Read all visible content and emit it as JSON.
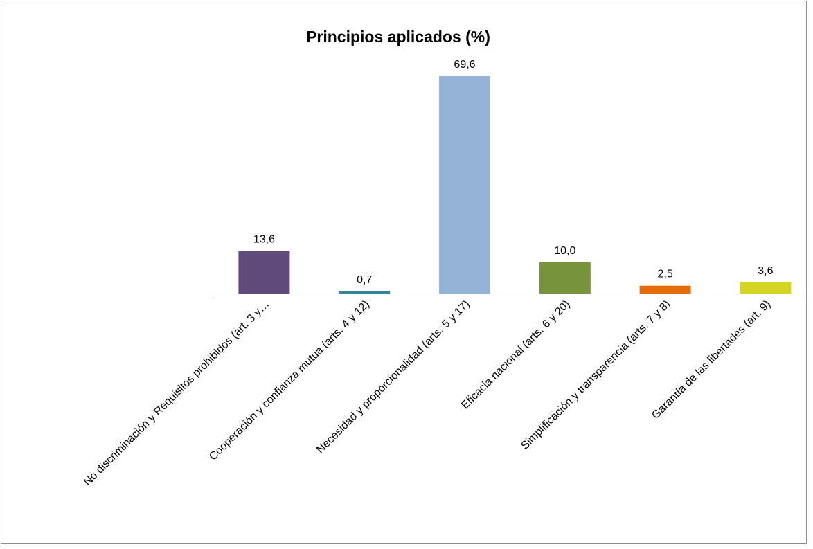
{
  "chart_data": {
    "type": "bar",
    "title": "Principios aplicados (%)",
    "categories": [
      "No discriminación y Requisitos prohibidos (art. 3 y…",
      "Cooperación y confianza mutua (arts. 4 y 12)",
      "Necesidad y proporcionalidad (arts. 5 y 17)",
      "Eficacia nacional (arts. 6 y 20)",
      "Simplificación y transparencia (arts. 7 y 8)",
      "Garantía de las libertades (art. 9)"
    ],
    "values": [
      13.6,
      0.7,
      69.6,
      10.0,
      2.5,
      3.6
    ],
    "value_labels": [
      "13,6",
      "0,7",
      "69,6",
      "10,0",
      "2,5",
      "3,6"
    ],
    "colors": [
      "#604a7b",
      "#31859c",
      "#95b3d7",
      "#77933c",
      "#e46c0a",
      "#d4d422"
    ]
  }
}
